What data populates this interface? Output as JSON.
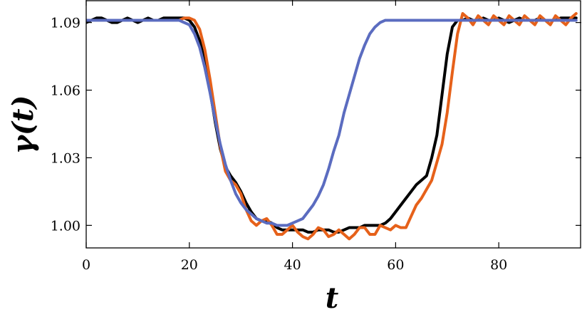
{
  "chart_data": {
    "type": "line",
    "xlabel": "t",
    "ylabel": "γ(t)",
    "x": [
      0,
      1,
      2,
      3,
      4,
      5,
      6,
      7,
      8,
      9,
      10,
      11,
      12,
      13,
      14,
      15,
      16,
      17,
      18,
      19,
      20,
      21,
      22,
      23,
      24,
      25,
      26,
      27,
      28,
      29,
      30,
      31,
      32,
      33,
      34,
      35,
      36,
      37,
      38,
      39,
      40,
      41,
      42,
      43,
      44,
      45,
      46,
      47,
      48,
      49,
      50,
      51,
      52,
      53,
      54,
      55,
      56,
      57,
      58,
      59,
      60,
      61,
      62,
      63,
      64,
      65,
      66,
      67,
      68,
      69,
      70,
      71,
      72,
      73,
      74,
      75,
      76,
      77,
      78,
      79,
      80,
      81,
      82,
      83,
      84,
      85,
      86,
      87,
      88,
      89,
      90,
      91,
      92,
      93,
      94,
      95
    ],
    "series": [
      {
        "color": "#000000",
        "values": [
          1.09,
          1.091,
          1.092,
          1.092,
          1.091,
          1.09,
          1.09,
          1.091,
          1.092,
          1.091,
          1.09,
          1.091,
          1.092,
          1.091,
          1.091,
          1.092,
          1.092,
          1.092,
          1.092,
          1.092,
          1.091,
          1.088,
          1.082,
          1.073,
          1.06,
          1.046,
          1.034,
          1.026,
          1.022,
          1.019,
          1.015,
          1.01,
          1.006,
          1.003,
          1.002,
          1.002,
          1.001,
          0.999,
          0.998,
          0.998,
          0.998,
          0.998,
          0.998,
          0.997,
          0.997,
          0.998,
          0.998,
          0.998,
          0.997,
          0.997,
          0.998,
          0.999,
          0.999,
          0.999,
          1.0,
          1.0,
          1.0,
          1.0,
          1.001,
          1.003,
          1.006,
          1.009,
          1.012,
          1.015,
          1.018,
          1.02,
          1.022,
          1.03,
          1.04,
          1.058,
          1.076,
          1.088,
          1.091,
          1.091,
          1.092,
          1.091,
          1.091,
          1.092,
          1.091,
          1.091,
          1.092,
          1.091,
          1.09,
          1.091,
          1.092,
          1.091,
          1.091,
          1.091,
          1.092,
          1.091,
          1.091,
          1.091,
          1.092,
          1.092,
          1.092,
          1.092
        ]
      },
      {
        "color": "#e6611a",
        "values": [
          1.091,
          1.091,
          1.091,
          1.091,
          1.091,
          1.091,
          1.091,
          1.091,
          1.091,
          1.091,
          1.091,
          1.091,
          1.091,
          1.091,
          1.091,
          1.091,
          1.091,
          1.091,
          1.091,
          1.092,
          1.092,
          1.091,
          1.087,
          1.078,
          1.065,
          1.05,
          1.035,
          1.024,
          1.02,
          1.018,
          1.014,
          1.007,
          1.002,
          1.0,
          1.002,
          1.003,
          1.0,
          0.996,
          0.996,
          0.998,
          1.0,
          0.997,
          0.995,
          0.994,
          0.996,
          0.999,
          0.998,
          0.995,
          0.996,
          0.998,
          0.996,
          0.994,
          0.996,
          0.999,
          0.999,
          0.996,
          0.996,
          1.0,
          0.999,
          0.998,
          1.0,
          0.999,
          0.999,
          1.004,
          1.009,
          1.012,
          1.016,
          1.02,
          1.028,
          1.036,
          1.05,
          1.068,
          1.085,
          1.094,
          1.092,
          1.089,
          1.093,
          1.091,
          1.089,
          1.093,
          1.091,
          1.089,
          1.093,
          1.091,
          1.089,
          1.093,
          1.091,
          1.089,
          1.093,
          1.091,
          1.089,
          1.093,
          1.091,
          1.089,
          1.092,
          1.094
        ]
      },
      {
        "color": "#5b6cc0",
        "values": [
          1.091,
          1.091,
          1.091,
          1.091,
          1.091,
          1.091,
          1.091,
          1.091,
          1.091,
          1.091,
          1.091,
          1.091,
          1.091,
          1.091,
          1.091,
          1.091,
          1.091,
          1.091,
          1.091,
          1.09,
          1.089,
          1.085,
          1.079,
          1.07,
          1.059,
          1.047,
          1.036,
          1.027,
          1.02,
          1.014,
          1.01,
          1.007,
          1.005,
          1.003,
          1.002,
          1.001,
          1.001,
          1.0,
          1.0,
          1.0,
          1.001,
          1.002,
          1.003,
          1.006,
          1.009,
          1.013,
          1.018,
          1.025,
          1.033,
          1.04,
          1.05,
          1.058,
          1.066,
          1.074,
          1.08,
          1.085,
          1.088,
          1.09,
          1.091,
          1.091,
          1.091,
          1.091,
          1.091,
          1.091,
          1.091,
          1.091,
          1.091,
          1.091,
          1.091,
          1.091,
          1.091,
          1.091,
          1.091,
          1.091,
          1.091,
          1.091,
          1.091,
          1.091,
          1.091,
          1.091,
          1.091,
          1.091,
          1.091,
          1.091,
          1.091,
          1.091,
          1.091,
          1.091,
          1.091,
          1.091,
          1.091,
          1.091,
          1.091,
          1.091,
          1.091,
          1.091
        ]
      }
    ],
    "xlim": [
      0,
      96
    ],
    "ylim": [
      0.99,
      1.1
    ],
    "xticks": [
      0,
      20,
      40,
      60,
      80
    ],
    "yticks": [
      {
        "value": 1,
        "label": "1.00"
      },
      1.03,
      1.06,
      1.09
    ]
  }
}
